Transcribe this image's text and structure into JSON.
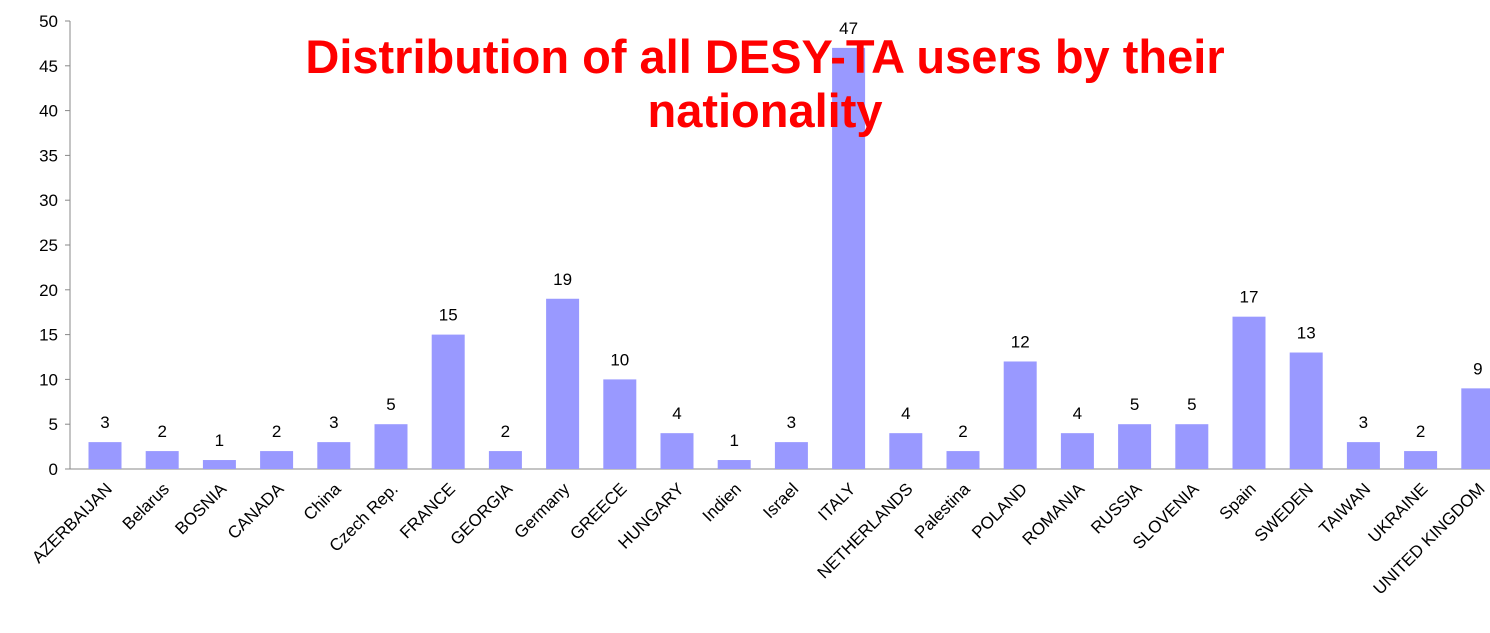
{
  "chart_data": {
    "type": "bar",
    "title": "Distribution of all DESY-TA users by their nationality",
    "categories": [
      "AZERBAIJAN",
      "Belarus",
      "BOSNIA",
      "CANADA",
      "China",
      "Czech Rep.",
      "FRANCE",
      "GEORGIA",
      "Germany",
      "GREECE",
      "HUNGARY",
      "Indien",
      "Israel",
      "ITALY",
      "NETHERLANDS",
      "Palestina",
      "POLAND",
      "ROMANIA",
      "RUSSIA",
      "SLOVENIA",
      "Spain",
      "SWEDEN",
      "TAIWAN",
      "UKRAINE",
      "UNITED KINGDOM"
    ],
    "values": [
      3,
      2,
      1,
      2,
      3,
      5,
      15,
      2,
      19,
      10,
      4,
      1,
      3,
      47,
      4,
      2,
      12,
      4,
      5,
      5,
      17,
      13,
      3,
      2,
      9
    ],
    "color": "#9999ff",
    "ylim": [
      0,
      50
    ],
    "yticks": [
      0,
      5,
      10,
      15,
      20,
      25,
      30,
      35,
      40,
      45,
      50
    ],
    "grid": false
  }
}
